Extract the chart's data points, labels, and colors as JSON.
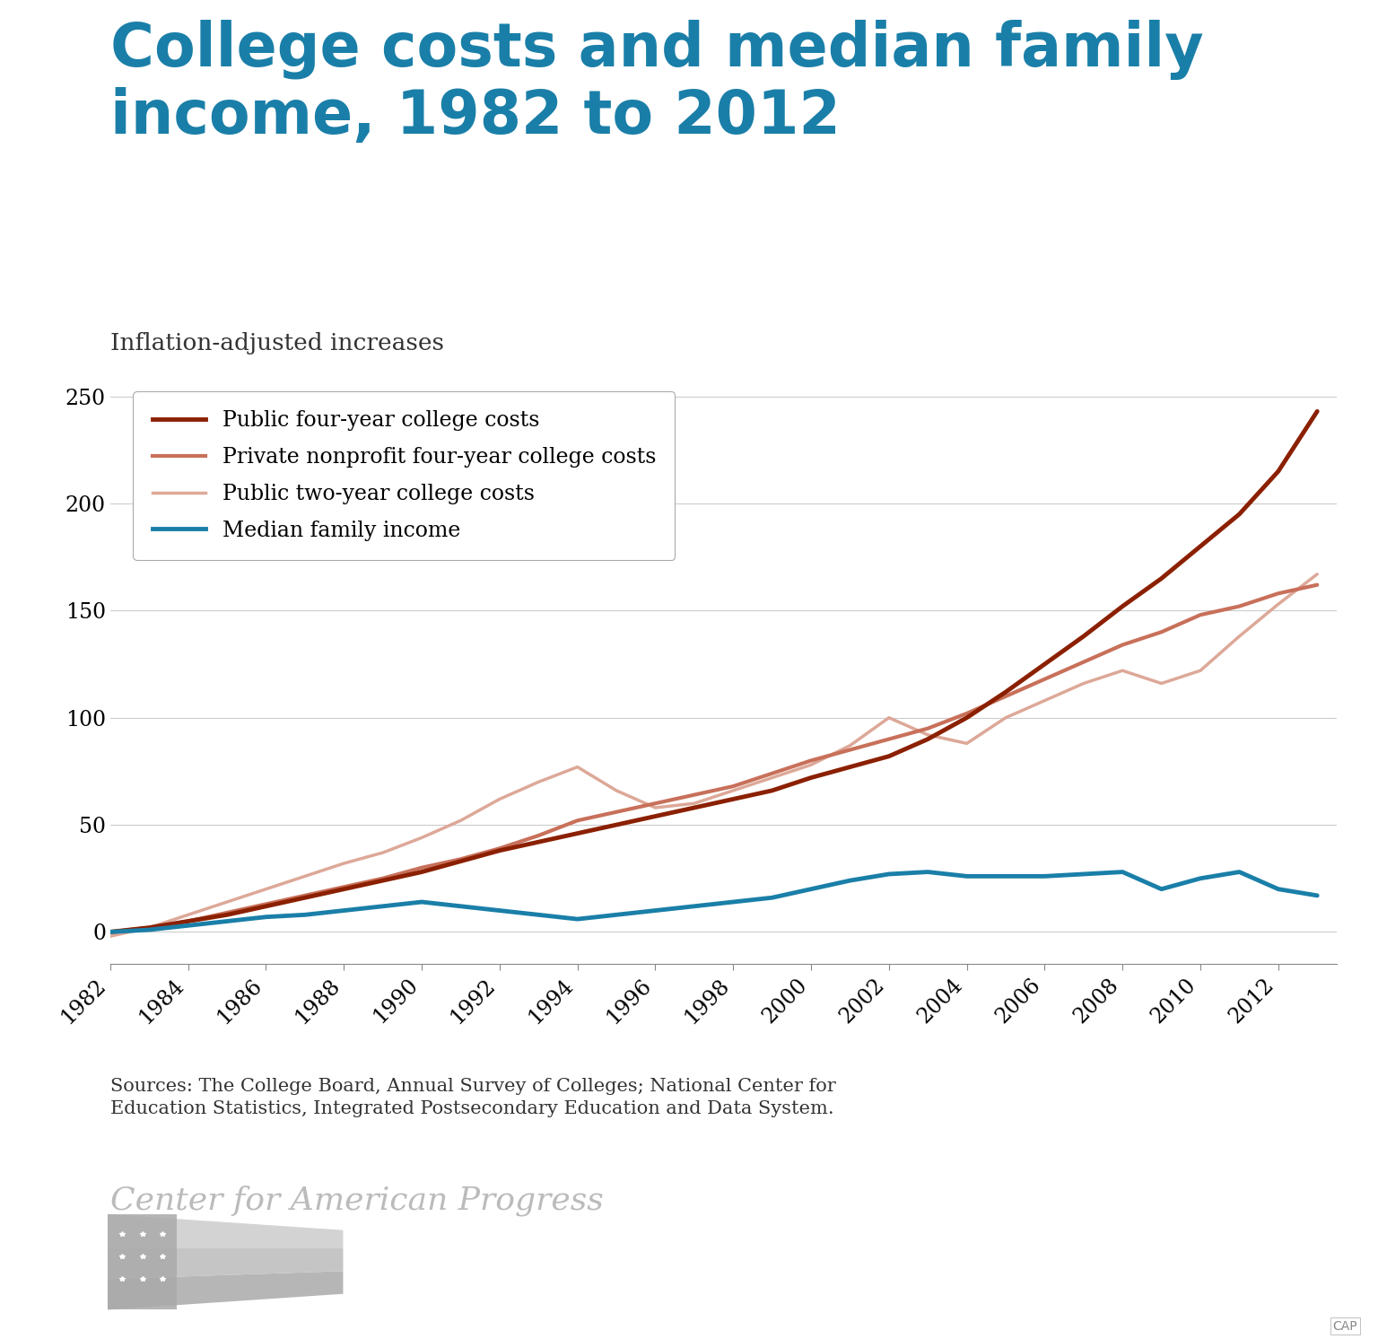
{
  "title": "College costs and median family\nincome, 1982 to 2012",
  "subtitle": "Inflation-adjusted increases",
  "title_color": "#1a7fa8",
  "title_fontsize": 48,
  "subtitle_fontsize": 19,
  "source_text": "Sources: The College Board, Annual Survey of Colleges; National Center for\nEducation Statistics, Integrated Postsecondary Education and Data System.",
  "watermark": "Center for American Progress",
  "years": [
    1982,
    1983,
    1984,
    1985,
    1986,
    1987,
    1988,
    1989,
    1990,
    1991,
    1992,
    1993,
    1994,
    1995,
    1996,
    1997,
    1998,
    1999,
    2000,
    2001,
    2002,
    2003,
    2004,
    2005,
    2006,
    2007,
    2008,
    2009,
    2010,
    2011,
    2012,
    2013
  ],
  "public_4yr": [
    0,
    2,
    5,
    8,
    12,
    16,
    20,
    24,
    28,
    33,
    38,
    42,
    46,
    50,
    54,
    58,
    62,
    66,
    72,
    77,
    82,
    90,
    100,
    112,
    125,
    138,
    152,
    165,
    180,
    195,
    215,
    243
  ],
  "private_nonprofit": [
    0,
    2,
    5,
    9,
    13,
    17,
    21,
    25,
    30,
    34,
    39,
    45,
    52,
    56,
    60,
    64,
    68,
    74,
    80,
    85,
    90,
    95,
    102,
    110,
    118,
    126,
    134,
    140,
    148,
    152,
    158,
    162
  ],
  "public_2yr": [
    -2,
    2,
    8,
    14,
    20,
    26,
    32,
    37,
    44,
    52,
    62,
    70,
    77,
    66,
    58,
    60,
    66,
    72,
    78,
    87,
    100,
    92,
    88,
    100,
    108,
    116,
    122,
    116,
    122,
    138,
    153,
    167
  ],
  "median_income": [
    0,
    1,
    3,
    5,
    7,
    8,
    10,
    12,
    14,
    12,
    10,
    8,
    6,
    8,
    10,
    12,
    14,
    16,
    20,
    24,
    27,
    28,
    26,
    26,
    26,
    27,
    28,
    20,
    25,
    28,
    20,
    17
  ],
  "line_colors": {
    "public_4yr": "#8B2000",
    "private_nonprofit": "#c8705a",
    "public_2yr": "#dda898",
    "median_income": "#1a7fa8"
  },
  "line_widths": {
    "public_4yr": 3.5,
    "private_nonprofit": 3.0,
    "public_2yr": 2.5,
    "median_income": 3.5
  },
  "legend_labels": [
    "Public four-year college costs",
    "Private nonprofit four-year college costs",
    "Public two-year college costs",
    "Median family income"
  ],
  "ylim": [
    -15,
    260
  ],
  "yticks": [
    0,
    50,
    100,
    150,
    200,
    250
  ],
  "xticks": [
    1982,
    1984,
    1986,
    1988,
    1990,
    1992,
    1994,
    1996,
    1998,
    2000,
    2002,
    2004,
    2006,
    2008,
    2010,
    2012
  ],
  "background_color": "#ffffff",
  "grid_color": "#cccccc"
}
